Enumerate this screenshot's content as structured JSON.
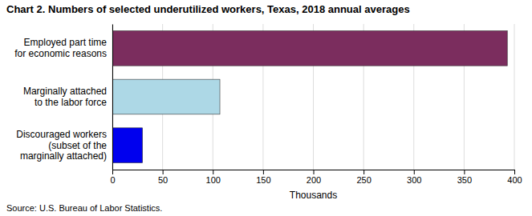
{
  "chart_data": {
    "type": "bar",
    "orientation": "horizontal",
    "title": "Chart 2. Numbers of selected underutilized workers, Texas, 2018 annual averages",
    "categories": [
      "Discouraged workers\n(subset of the\nmarginally attached)",
      "Marginally attached\nto the labor force",
      "Employed part time\nfor economic reasons"
    ],
    "values": [
      30,
      107,
      393
    ],
    "colors": [
      "#0000ee",
      "#add8e6",
      "#7b2d5e"
    ],
    "xlabel": "Thousands",
    "xlim": [
      0,
      400
    ],
    "xticks": [
      0,
      50,
      100,
      150,
      200,
      250,
      300,
      350,
      400
    ],
    "grid": true,
    "source": "Source: U.S. Bureau of Labor Statistics."
  }
}
